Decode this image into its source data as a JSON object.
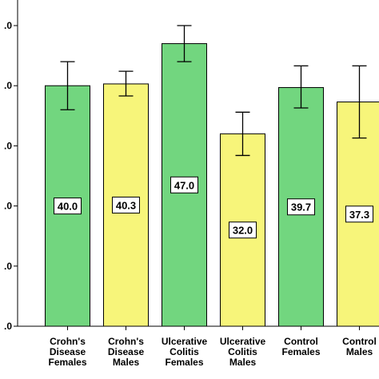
{
  "chart_data": {
    "type": "bar",
    "ylim": [
      0,
      50
    ],
    "y_ticks": [
      {
        "value": 0,
        "label": ".0"
      },
      {
        "value": 10,
        "label": ".0"
      },
      {
        "value": 20,
        "label": ".0"
      },
      {
        "value": 30,
        "label": ".0"
      },
      {
        "value": 40,
        "label": ".0"
      },
      {
        "value": 50,
        "label": ".0"
      }
    ],
    "categories": [
      [
        "Crohn's",
        "Disease",
        "Females"
      ],
      [
        "Crohn's",
        "Disease",
        "Males"
      ],
      [
        "Ulcerative",
        "Colitis",
        "Females"
      ],
      [
        "Ulcerative",
        "Colitis",
        "Males"
      ],
      [
        "Control",
        "Females"
      ],
      [
        "Control",
        "Males"
      ]
    ],
    "values": [
      40.0,
      40.3,
      47.0,
      32.0,
      39.7,
      37.3
    ],
    "value_labels": [
      "40.0",
      "40.3",
      "47.0",
      "32.0",
      "39.7",
      "37.3"
    ],
    "error_bars": [
      {
        "low": 36.0,
        "high": 44.0
      },
      {
        "low": 38.3,
        "high": 42.4
      },
      {
        "low": 44.0,
        "high": 50.0
      },
      {
        "low": 28.4,
        "high": 35.6
      },
      {
        "low": 36.3,
        "high": 43.3
      },
      {
        "low": 31.3,
        "high": 43.3
      }
    ],
    "colors": [
      "#72d67f",
      "#f7f57a",
      "#72d67f",
      "#f7f57a",
      "#72d67f",
      "#f7f57a"
    ],
    "border_color": "#000000",
    "grid": false
  }
}
